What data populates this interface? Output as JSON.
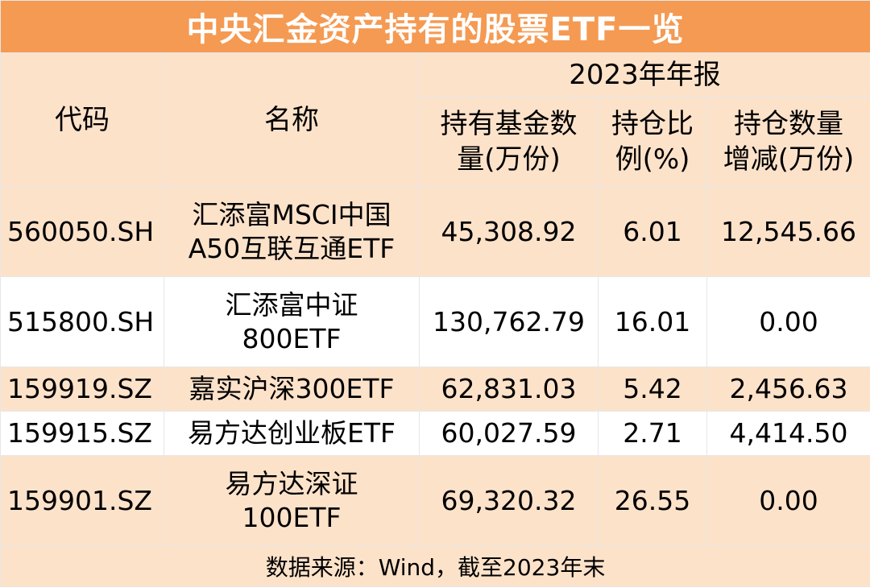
{
  "title": "中央汇金资产持有的股票ETF一览",
  "header": {
    "code": "代码",
    "name": "名称",
    "period": "2023年年报",
    "holdings_line1": "持有基金数",
    "holdings_line2": "量(万份)",
    "weight_line1": "持仓比",
    "weight_line2": "例(%)",
    "change_line1": "持仓数量",
    "change_line2": "增减(万份)"
  },
  "rows": [
    {
      "code": "560050.SH",
      "name_line1": "汇添富MSCI中国",
      "name_line2": "A50互联互通ETF",
      "holdings": "45,308.92",
      "weight": "6.01",
      "change": "12,545.66"
    },
    {
      "code": "515800.SH",
      "name_line1": "汇添富中证",
      "name_line2": "800ETF",
      "holdings": "130,762.79",
      "weight": "16.01",
      "change": "0.00"
    },
    {
      "code": "159919.SZ",
      "name_line1": "嘉实沪深300ETF",
      "name_line2": "",
      "holdings": "62,831.03",
      "weight": "5.42",
      "change": "2,456.63"
    },
    {
      "code": "159915.SZ",
      "name_line1": "易方达创业板ETF",
      "name_line2": "",
      "holdings": "60,027.59",
      "weight": "2.71",
      "change": "4,414.50"
    },
    {
      "code": "159901.SZ",
      "name_line1": "易方达深证",
      "name_line2": "100ETF",
      "holdings": "69,320.32",
      "weight": "26.55",
      "change": "0.00"
    }
  ],
  "footer": "数据来源：Wind，截至2023年末",
  "colors": {
    "title_bg": "#f59a52",
    "band_bg": "#fde2ca",
    "title_text": "#ffffff"
  }
}
